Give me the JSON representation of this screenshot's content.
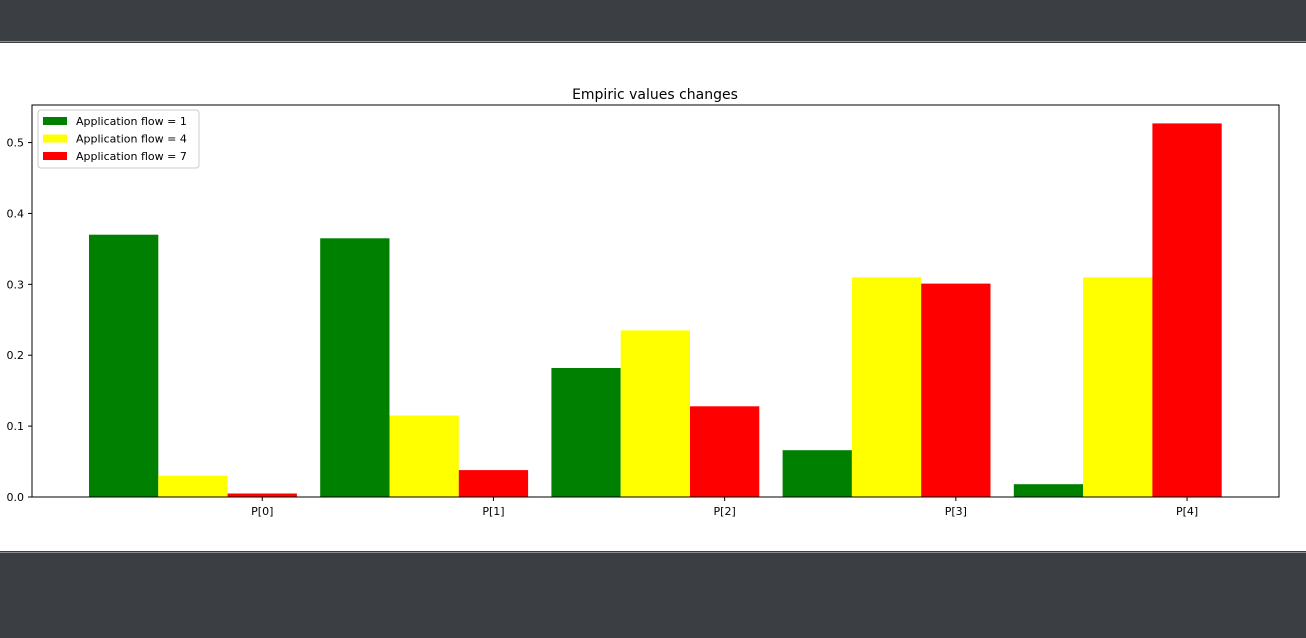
{
  "chart_data": {
    "type": "bar",
    "title": "Empiric values changes",
    "xlabel": "",
    "ylabel": "",
    "categories": [
      "P[0]",
      "P[1]",
      "P[2]",
      "P[3]",
      "P[4]"
    ],
    "series": [
      {
        "name": "Application flow = 1",
        "color": "#008000",
        "values": [
          0.37,
          0.365,
          0.182,
          0.066,
          0.018
        ]
      },
      {
        "name": "Application flow = 4",
        "color": "#ffff00",
        "values": [
          0.03,
          0.115,
          0.235,
          0.31,
          0.31
        ]
      },
      {
        "name": "Application flow = 7",
        "color": "#ff0000",
        "values": [
          0.005,
          0.038,
          0.128,
          0.301,
          0.527
        ]
      }
    ],
    "ylim": [
      0,
      0.553
    ],
    "yticks": [
      "0.0",
      "0.1",
      "0.2",
      "0.3",
      "0.4",
      "0.5"
    ],
    "ytick_values": [
      0.0,
      0.1,
      0.2,
      0.3,
      0.4,
      0.5
    ],
    "grid": false,
    "legend_position": "top-left"
  }
}
